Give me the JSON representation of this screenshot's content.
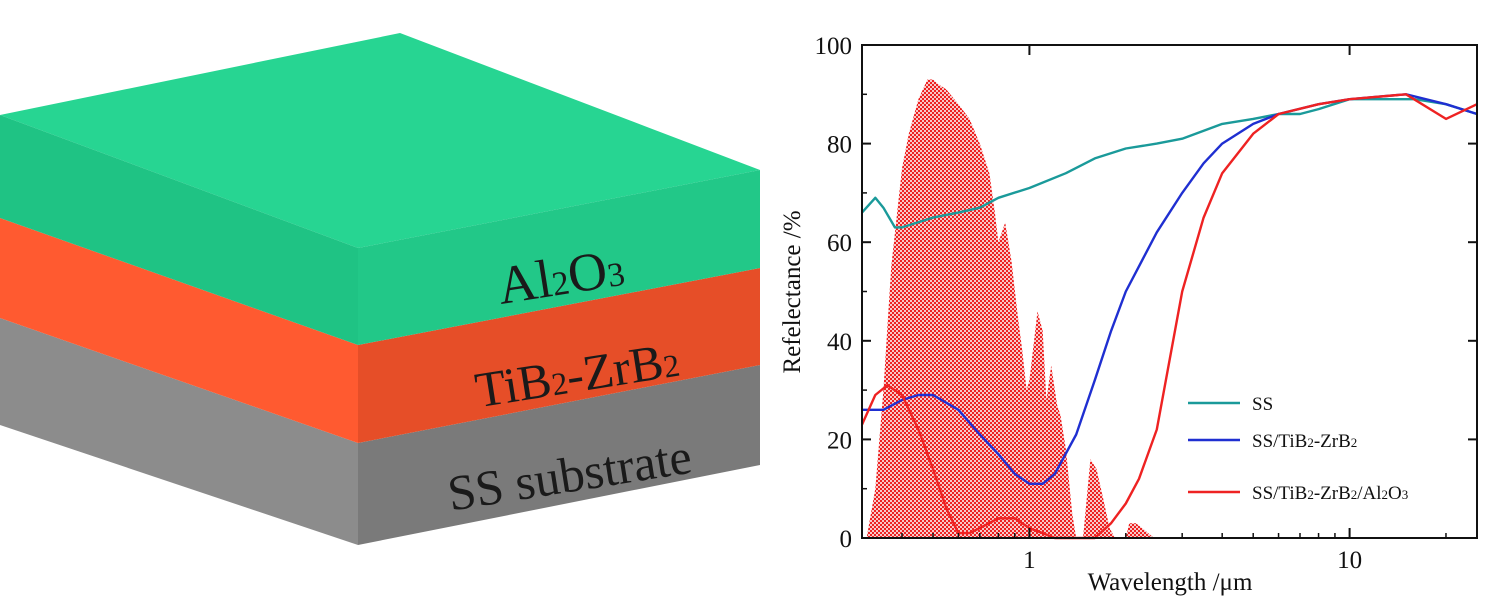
{
  "schematic": {
    "layers": [
      {
        "name": "Al2O3",
        "label_main": "Al",
        "label_sub1": "2",
        "label_mid": "O",
        "label_sub2": "3",
        "top_color": "#27d592",
        "side_color": "#20c283",
        "front_color": "#1dbf80"
      },
      {
        "name": "TiB2-ZrB2",
        "label_main": "TiB",
        "label_sub1": "2",
        "label_mid": "-ZrB",
        "label_sub2": "2",
        "side_color": "#e8522b",
        "front_color": "#ff5a30"
      },
      {
        "name": "SS substrate",
        "label_main": "SS substrate",
        "side_color": "#7f7f7f",
        "front_color": "#8c8c8c"
      }
    ]
  },
  "chart_data": {
    "type": "line",
    "xscale": "log",
    "xlim": [
      0.3,
      25
    ],
    "ylim": [
      0,
      100
    ],
    "xlabel": "Wavelength /μm",
    "ylabel": "Refelectance /%",
    "xticks": [
      1,
      10
    ],
    "yticks": [
      0,
      20,
      40,
      60,
      80,
      100
    ],
    "legend_position": "lower-right",
    "series": [
      {
        "name": "SS",
        "name_parts": [
          "SS"
        ],
        "color": "#1a9a9a",
        "x": [
          0.3,
          0.33,
          0.35,
          0.38,
          0.4,
          0.5,
          0.6,
          0.7,
          0.8,
          1.0,
          1.3,
          1.6,
          2.0,
          2.5,
          3.0,
          4.0,
          5.0,
          6.0,
          7.0,
          8.0,
          10,
          13,
          16,
          20,
          25
        ],
        "y": [
          66,
          69,
          67,
          63,
          63,
          65,
          66,
          67,
          69,
          71,
          74,
          77,
          79,
          80,
          81,
          84,
          85,
          86,
          86,
          87,
          89,
          89,
          89,
          88,
          86
        ]
      },
      {
        "name": "SS/TiB2-ZrB2",
        "name_parts": [
          "SS/TiB",
          "2",
          "-ZrB",
          "2"
        ],
        "color": "#1f2fd1",
        "x": [
          0.3,
          0.35,
          0.4,
          0.45,
          0.5,
          0.6,
          0.7,
          0.8,
          0.9,
          1.0,
          1.1,
          1.2,
          1.4,
          1.6,
          1.8,
          2.0,
          2.5,
          3.0,
          3.5,
          4.0,
          5.0,
          6.0,
          8.0,
          10,
          15,
          20,
          25
        ],
        "y": [
          26,
          26,
          28,
          29,
          29,
          26,
          21,
          17,
          13,
          11,
          11,
          13,
          21,
          32,
          42,
          50,
          62,
          70,
          76,
          80,
          84,
          86,
          88,
          89,
          90,
          88,
          86
        ]
      },
      {
        "name": "SS/TiB2-ZrB2/Al2O3",
        "name_parts": [
          "SS/TiB",
          "2",
          "-ZrB",
          "2",
          "/Al",
          "2",
          "O",
          "3"
        ],
        "color": "#ee2222",
        "x": [
          0.3,
          0.33,
          0.36,
          0.4,
          0.45,
          0.5,
          0.55,
          0.6,
          0.65,
          0.7,
          0.8,
          0.9,
          1.0,
          1.1,
          1.2,
          1.3,
          1.4,
          1.6,
          1.8,
          2.0,
          2.2,
          2.5,
          3.0,
          3.5,
          4.0,
          5.0,
          6.0,
          8.0,
          10,
          15,
          20,
          25
        ],
        "y": [
          23,
          29,
          31,
          29,
          22,
          14,
          6,
          1,
          1,
          2,
          4,
          4,
          2,
          1,
          0,
          0,
          0,
          0,
          3,
          7,
          12,
          22,
          50,
          65,
          74,
          82,
          86,
          88,
          89,
          90,
          85,
          88
        ]
      }
    ],
    "solar_spectrum": {
      "color": "#ee2222",
      "x": [
        0.31,
        0.33,
        0.35,
        0.37,
        0.4,
        0.42,
        0.45,
        0.48,
        0.5,
        0.52,
        0.55,
        0.6,
        0.65,
        0.7,
        0.75,
        0.78,
        0.8,
        0.84,
        0.88,
        0.92,
        0.95,
        0.98,
        1.0,
        1.06,
        1.1,
        1.13,
        1.17,
        1.22,
        1.25,
        1.3,
        1.36,
        1.4,
        1.47,
        1.55,
        1.62,
        1.7,
        1.78,
        1.85,
        2.0,
        2.05,
        2.15,
        2.25,
        2.35,
        2.45,
        2.5
      ],
      "y": [
        0,
        10,
        30,
        55,
        75,
        82,
        89,
        93,
        93,
        92,
        91,
        88,
        85,
        80,
        74,
        66,
        60,
        64,
        56,
        45,
        38,
        30,
        32,
        46,
        42,
        28,
        35,
        27,
        25,
        18,
        5,
        0,
        0,
        16,
        14,
        8,
        2,
        0,
        0,
        3,
        3,
        2,
        1,
        0,
        0
      ]
    }
  }
}
